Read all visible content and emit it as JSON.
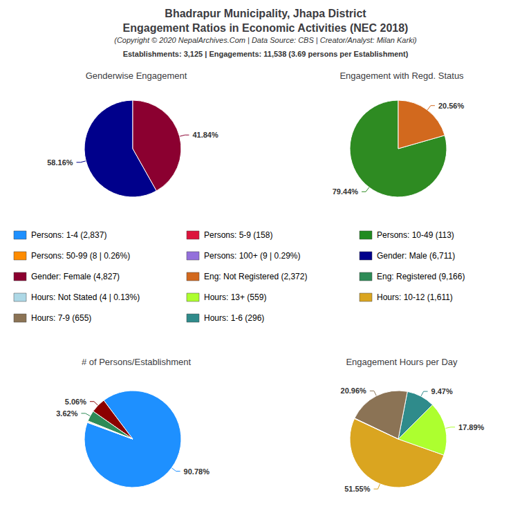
{
  "title": "Bhadrapur Municipality, Jhapa District",
  "subtitle": "Engagement Ratios in Economic Activities (NEC 2018)",
  "annotations": [
    {
      "text": "(Copyright © 2020 NepalArchives.Com | Data Source: CBS | Creator/Analyst: Milan Karki)"
    },
    {
      "text": "Establishments: 3,125 | Engagements: 11,538 (3.69 persons per Establishment)"
    },
    {
      "text": "Persons: 1-4 (2,837)",
      "color": "#1E90FF"
    },
    {
      "text": "Persons: 5-9 (158)",
      "color": "#DC143C"
    },
    {
      "text": "Persons: 10-49 (113)",
      "color": "#228B22"
    },
    {
      "text": "Persons: 50-99 (8 | 0.26%)",
      "color": "#FF8C00"
    },
    {
      "text": "Persons: 100+ (9 | 0.29%)",
      "color": "#9370DB"
    },
    {
      "text": "Gender: Male (6,711)",
      "color": "#00008B"
    },
    {
      "text": "Gender: Female (4,827)",
      "color": "#8B0030"
    },
    {
      "text": "Eng: Not Registered (2,372)",
      "color": "#D2691E"
    },
    {
      "text": "Eng: Registered (9,166)",
      "color": "#2E8B57"
    },
    {
      "text": "Hours: Not Stated (4 | 0.13%)",
      "color": "#ADD8E6"
    },
    {
      "text": "Hours: 13+ (559)",
      "color": "#ADFF2F"
    },
    {
      "text": "Hours: 10-12 (1,611)",
      "color": "#DAA520"
    },
    {
      "text": "Hours: 7-9 (655)",
      "color": "#8B7355"
    },
    {
      "text": "Hours: 1-6 (296)",
      "color": "#2F8B8B"
    }
  ],
  "chart_data": [
    {
      "type": "pie",
      "title": "Genderwise Engagement",
      "values": [
        58.16,
        41.84
      ],
      "colors": [
        "#00008B",
        "#8B0030"
      ],
      "value_labels": [
        "58.16%",
        "41.84%"
      ],
      "data_labels": true
    },
    {
      "type": "pie",
      "title": "Engagement with Regd. Status",
      "values": [
        79.44,
        20.56
      ],
      "colors": [
        "#2E8B22",
        "#D2691E"
      ],
      "value_labels": [
        "79.44%",
        "20.56%"
      ],
      "data_labels": true
    },
    {
      "type": "pie",
      "title": "# of Persons/Establishment",
      "values": [
        90.78,
        5.06,
        3.62,
        0.26,
        0.13,
        0.15
      ],
      "colors": [
        "#1E90FF",
        "#8B0000",
        "#2E8B57",
        "#FF8C00",
        "#ADD8E6",
        "#FF6347"
      ],
      "value_labels": [
        "90.78%",
        "5.06%",
        "3.62%",
        null,
        null,
        null
      ],
      "data_labels": true
    },
    {
      "type": "pie",
      "title": "Engagement Hours per Day",
      "values": [
        51.55,
        17.89,
        9.47,
        20.96,
        0.13
      ],
      "colors": [
        "#DAA520",
        "#ADFF2F",
        "#2F8B8B",
        "#8B7355",
        "#FF6347"
      ],
      "value_labels": [
        "51.55%",
        "17.89%",
        "9.47%",
        "20.96%",
        null
      ],
      "data_labels": true
    }
  ]
}
